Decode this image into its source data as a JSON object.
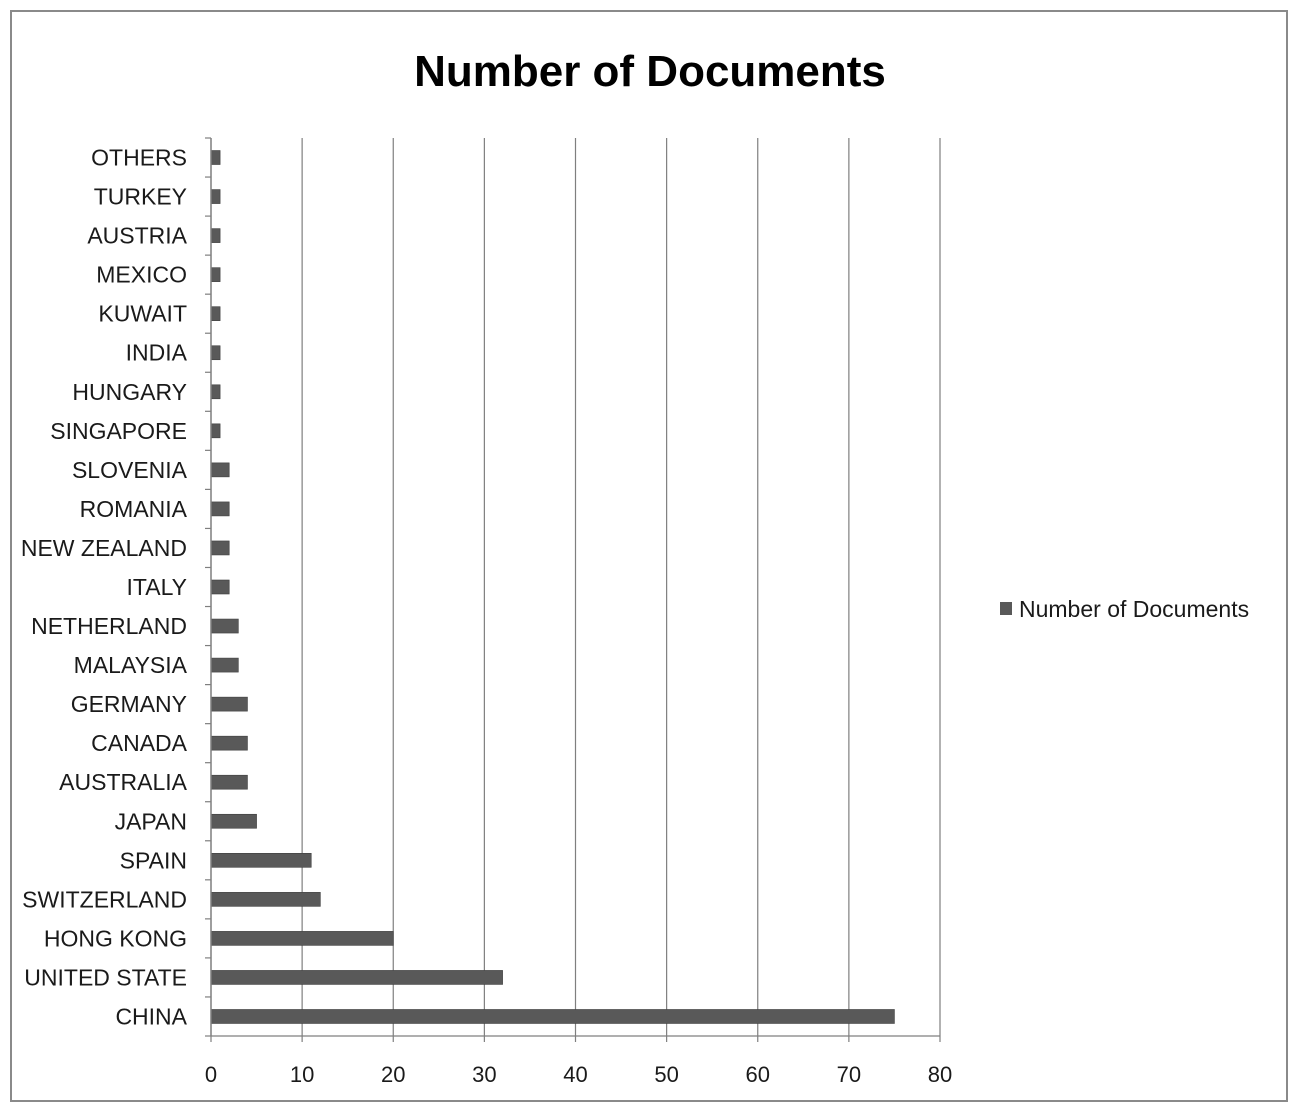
{
  "chart_data": {
    "type": "bar",
    "orientation": "horizontal",
    "title": "Number of Documents",
    "xlabel": "",
    "ylabel": "",
    "xlim": [
      0,
      80
    ],
    "xticks": [
      0,
      10,
      20,
      30,
      40,
      50,
      60,
      70,
      80
    ],
    "grid": true,
    "legend_position": "right",
    "categories": [
      "CHINA",
      "UNITED STATE",
      "HONG KONG",
      "SWITZERLAND",
      "SPAIN",
      "JAPAN",
      "AUSTRALIA",
      "CANADA",
      "GERMANY",
      "MALAYSIA",
      "NETHERLAND",
      "ITALY",
      "NEW ZEALAND",
      "ROMANIA",
      "SLOVENIA",
      "SINGAPORE",
      "HUNGARY",
      "INDIA",
      "KUWAIT",
      "MEXICO",
      "AUSTRIA",
      "TURKEY",
      "OTHERS"
    ],
    "series": [
      {
        "name": "Number of Documents",
        "color": "#595959",
        "values": [
          75,
          32,
          20,
          12,
          11,
          5,
          4,
          4,
          4,
          3,
          3,
          2,
          2,
          2,
          2,
          1,
          1,
          1,
          1,
          1,
          1,
          1,
          1
        ]
      }
    ]
  }
}
